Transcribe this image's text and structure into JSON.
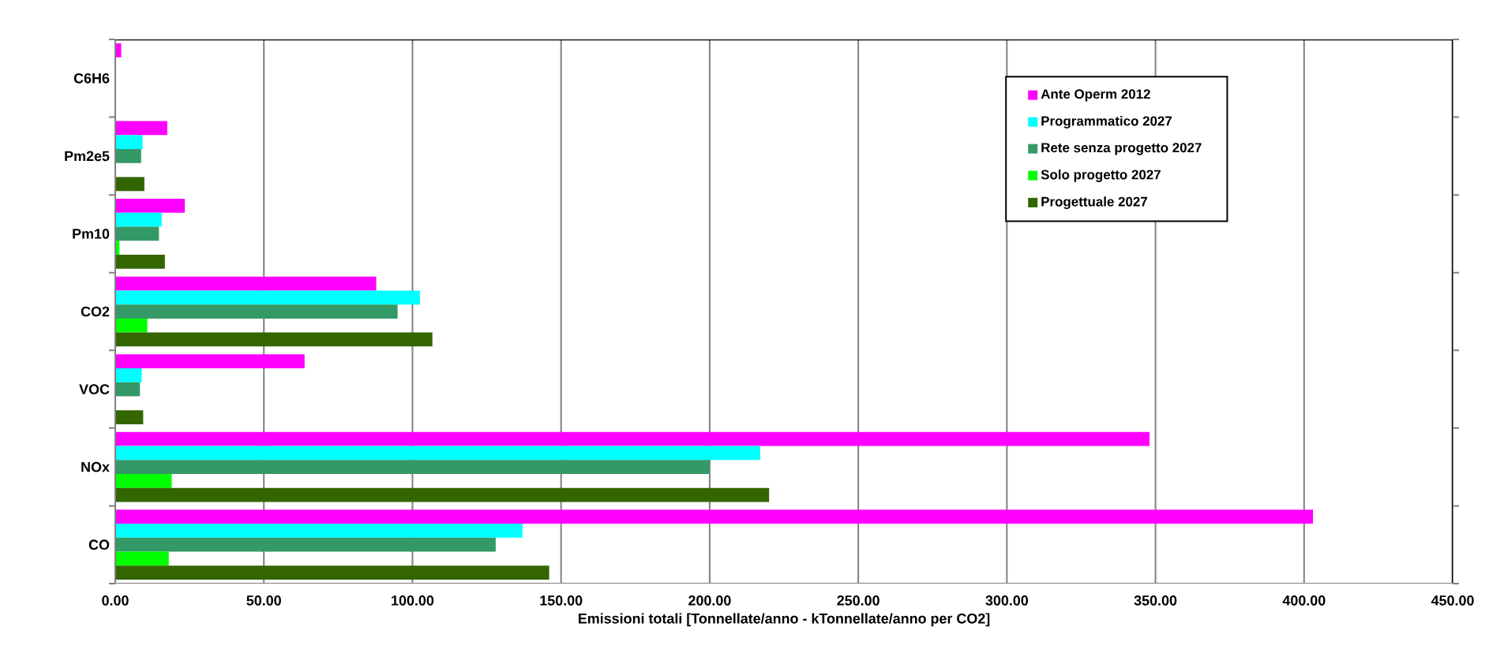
{
  "chart_data": {
    "type": "bar",
    "orientation": "horizontal",
    "xlabel": "Emissioni totali [Tonnellate/anno - kTonnellate/anno per CO2]",
    "categories": [
      "C6H6",
      "Pm2e5",
      "Pm10",
      "CO2",
      "VOC",
      "NOx",
      "CO"
    ],
    "series": [
      {
        "name": "Ante Operm 2012",
        "color": "#ff00ff",
        "values": [
          2.0,
          17.5,
          23.4,
          87.8,
          63.7,
          348,
          403
        ]
      },
      {
        "name": "Programmatico 2027",
        "color": "#00ffff",
        "values": [
          0,
          9.2,
          15.6,
          102.5,
          8.9,
          217,
          137
        ]
      },
      {
        "name": "Rete senza progetto 2027",
        "color": "#339966",
        "values": [
          0,
          8.7,
          14.7,
          95,
          8.3,
          200,
          128
        ]
      },
      {
        "name": "Solo progetto 2027",
        "color": "#00ff00",
        "values": [
          0,
          null,
          1.4,
          10.8,
          null,
          19,
          18
        ]
      },
      {
        "name": "Progettuale 2027",
        "color": "#336600",
        "values": [
          0,
          9.8,
          16.7,
          106.7,
          9.4,
          220,
          146
        ]
      }
    ],
    "xlim": [
      0,
      450
    ],
    "xticks": [
      {
        "value": 0,
        "label": "0.00"
      },
      {
        "value": 50,
        "label": "50.00"
      },
      {
        "value": 100,
        "label": "100.00"
      },
      {
        "value": 150,
        "label": "150.00"
      },
      {
        "value": 200,
        "label": "200.00"
      },
      {
        "value": 250,
        "label": "250.00"
      },
      {
        "value": 300,
        "label": "300.00"
      },
      {
        "value": 350,
        "label": "350.00"
      },
      {
        "value": 400,
        "label": "400.00"
      },
      {
        "value": 450,
        "label": "450.00"
      }
    ],
    "grid": "x",
    "legend": "top right"
  }
}
